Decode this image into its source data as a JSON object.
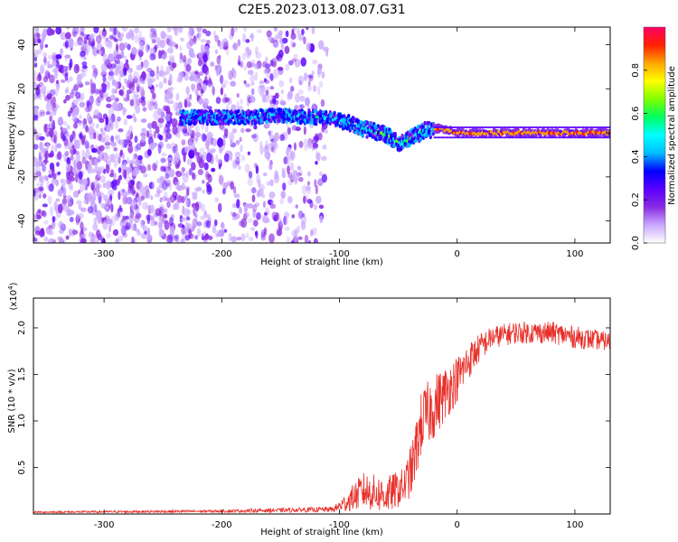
{
  "title": "C2E5.2023.013.08.07.G31",
  "colors": {
    "snr_line": "#e8302a",
    "colormap": [
      "#ffffff",
      "#c9a8ff",
      "#8a2be2",
      "#5a00ff",
      "#0000ff",
      "#00bfff",
      "#00ffff",
      "#00ff60",
      "#7fff00",
      "#ffff00",
      "#ffa500",
      "#ff2000",
      "#ff0066"
    ]
  },
  "chart_data": [
    {
      "type": "heatmap",
      "xlabel": "Height of straight line (km)",
      "ylabel": "Frequency (Hz)",
      "xlim": [
        -360,
        130
      ],
      "ylim": [
        -50,
        48
      ],
      "xticks": [
        -300,
        -200,
        -100,
        0,
        100
      ],
      "yticks": [
        -40,
        -20,
        0,
        20,
        40
      ],
      "colorbar": {
        "label": "Normalized spectral amplitude",
        "range": [
          0,
          1
        ],
        "ticks": [
          0.0,
          0.2,
          0.4,
          0.6,
          0.8
        ]
      },
      "ridge": {
        "description_points": [
          {
            "x": -220,
            "y": 7
          },
          {
            "x": -180,
            "y": 7
          },
          {
            "x": -150,
            "y": 8
          },
          {
            "x": -120,
            "y": 7
          },
          {
            "x": -100,
            "y": 6
          },
          {
            "x": -80,
            "y": 2
          },
          {
            "x": -60,
            "y": -1
          },
          {
            "x": -48,
            "y": -5
          },
          {
            "x": -38,
            "y": -2
          },
          {
            "x": -28,
            "y": 1
          },
          {
            "x": -15,
            "y": 2
          },
          {
            "x": 0,
            "y": 0
          },
          {
            "x": 50,
            "y": 0
          },
          {
            "x": 130,
            "y": 0
          }
        ]
      }
    },
    {
      "type": "line",
      "xlabel": "Height of straight line (km)",
      "ylabel": "SNR (10 * v/v)",
      "exponent_label": "(x10",
      "exponent_power": "4",
      "exponent_close": ")",
      "xlim": [
        -360,
        130
      ],
      "ylim": [
        0,
        2.32
      ],
      "xticks": [
        -300,
        -200,
        -100,
        0,
        100
      ],
      "yticks": [
        0.5,
        1.0,
        1.5,
        2.0
      ],
      "ytick_labels": [
        "0.5",
        "1.0",
        "1.5",
        "2.0"
      ],
      "envelope": {
        "x": [
          -360,
          -200,
          -105,
          -95,
          -80,
          -60,
          -45,
          -38,
          -30,
          -20,
          -10,
          0,
          10,
          20,
          30,
          50,
          80,
          100,
          130
        ],
        "mean": [
          0.02,
          0.03,
          0.05,
          0.12,
          0.25,
          0.2,
          0.3,
          0.5,
          1.0,
          1.15,
          1.3,
          1.45,
          1.65,
          1.8,
          1.9,
          1.95,
          1.95,
          1.9,
          1.85
        ],
        "spread": [
          0.01,
          0.015,
          0.03,
          0.1,
          0.2,
          0.2,
          0.2,
          0.3,
          0.35,
          0.35,
          0.3,
          0.25,
          0.2,
          0.15,
          0.12,
          0.12,
          0.12,
          0.12,
          0.1
        ]
      }
    }
  ]
}
